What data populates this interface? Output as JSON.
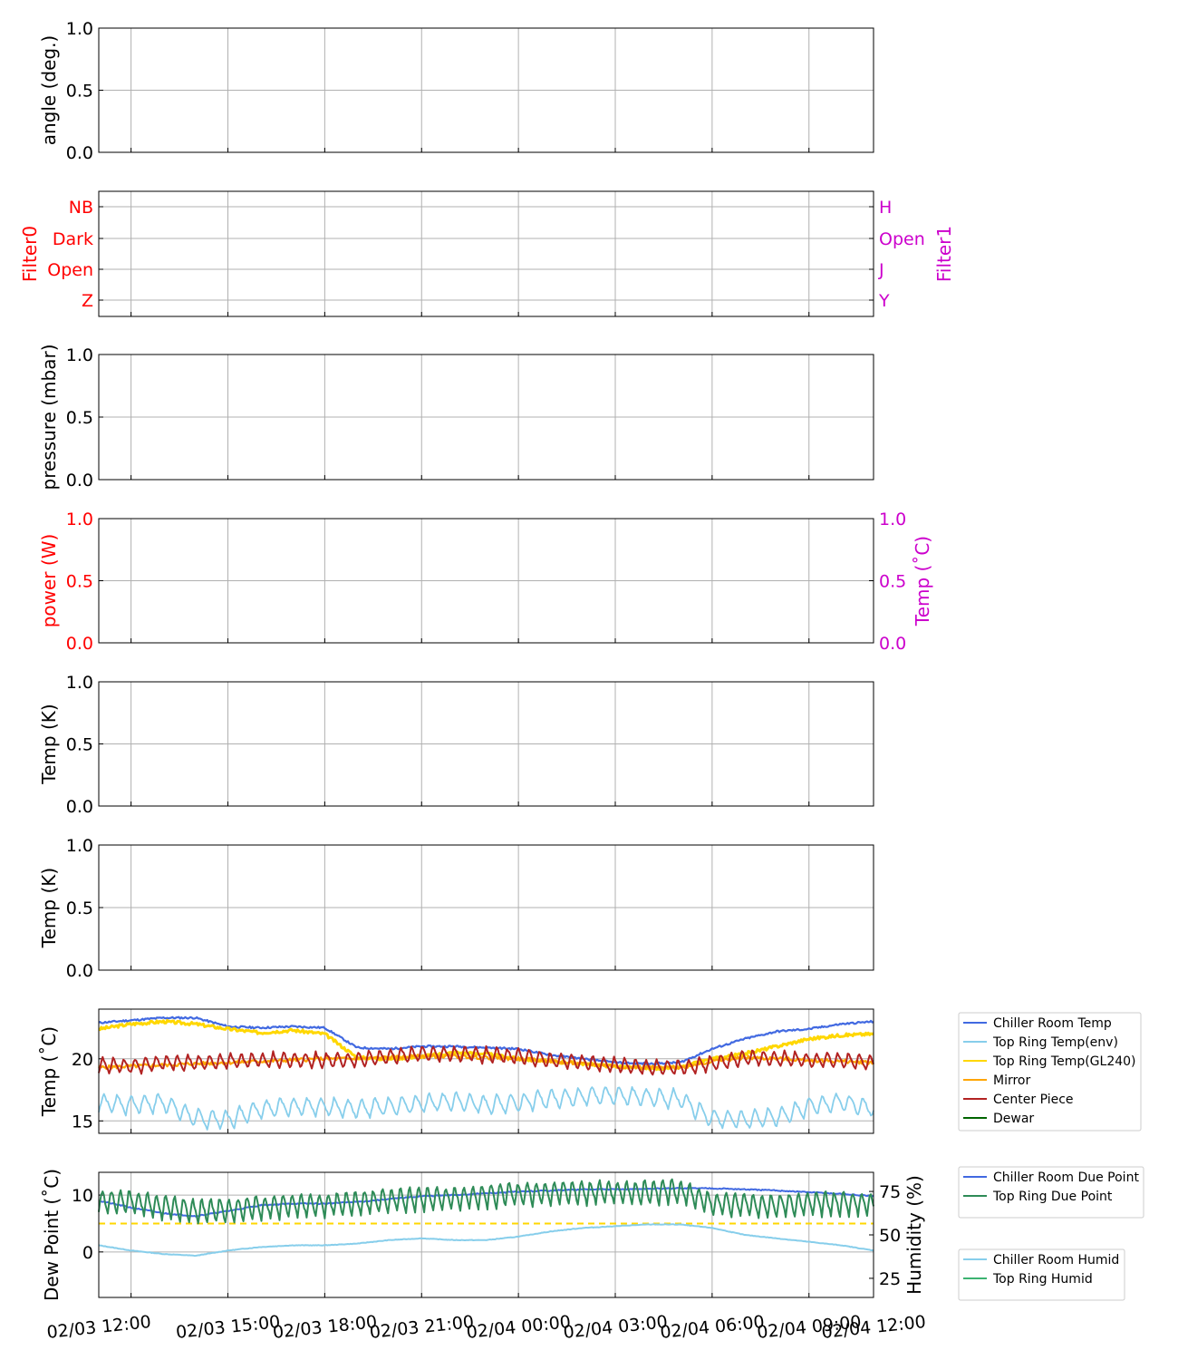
{
  "colors": {
    "chiller_room_temp": "#4169e1",
    "top_ring_temp_env": "#87ceeb",
    "top_ring_temp_gl240": "#ffd700",
    "mirror": "#ffa500",
    "center_piece": "#b22222",
    "dewar": "#006400",
    "chiller_room_due_point": "#4169e1",
    "top_ring_due_point": "#2e8b57",
    "chiller_room_humid": "#87ceeb",
    "top_ring_humid": "#3cb371",
    "threshold": "#ffd700",
    "filter0": "#ff0000",
    "filter1": "#cc00cc"
  },
  "chart_data": [
    {
      "id": "angle",
      "type": "line",
      "ylabel": "angle (deg.)",
      "ylim": [
        0,
        1
      ],
      "yticks": [
        "0.0",
        "0.5",
        "1.0"
      ],
      "grid": true,
      "series": []
    },
    {
      "id": "filter",
      "type": "line",
      "ylabel_left": "Filter0",
      "ylabel_right": "Filter1",
      "yticks_left": [
        "Z",
        "Open",
        "Dark",
        "NB"
      ],
      "yticks_right": [
        "Y",
        "J",
        "Open",
        "H"
      ],
      "grid": true,
      "series": []
    },
    {
      "id": "pressure",
      "type": "line",
      "ylabel": "pressure (mbar)",
      "ylim": [
        0,
        1
      ],
      "yticks": [
        "0.0",
        "0.5",
        "1.0"
      ],
      "grid": true,
      "series": []
    },
    {
      "id": "power",
      "type": "line",
      "ylabel_left": "power (W)",
      "ylabel_right": "Temp (˚C)",
      "ylim": [
        0,
        1
      ],
      "yticks_left": [
        "0.0",
        "0.5",
        "1.0"
      ],
      "yticks_right": [
        "0.0",
        "0.5",
        "1.0"
      ],
      "grid": true,
      "series": []
    },
    {
      "id": "tempK1",
      "type": "line",
      "ylabel": "Temp (K)",
      "ylim": [
        0,
        1
      ],
      "yticks": [
        "0.0",
        "0.5",
        "1.0"
      ],
      "grid": true,
      "series": []
    },
    {
      "id": "tempK2",
      "type": "line",
      "ylabel": "Temp (K)",
      "ylim": [
        0,
        1
      ],
      "yticks": [
        "0.0",
        "0.5",
        "1.0"
      ],
      "grid": true,
      "series": []
    },
    {
      "id": "env",
      "type": "line",
      "ylabel": "Temp (˚C)",
      "ylim": [
        14,
        24
      ],
      "yticks": [
        15,
        20
      ],
      "grid": true,
      "x_unit": "hours since 02/03 11:00",
      "legend_position": "right",
      "legend": [
        "Chiller Room Temp",
        "Top Ring Temp(env)",
        "Top Ring Temp(GL240)",
        "Mirror",
        "Center Piece",
        "Dewar"
      ],
      "series": [
        {
          "name": "Chiller Room Temp",
          "x": [
            0,
            1,
            2,
            3,
            4,
            5,
            6,
            7,
            8,
            9,
            10,
            11,
            12,
            13,
            14,
            15,
            16,
            17,
            18,
            19,
            20,
            21,
            22,
            23,
            24
          ],
          "y": [
            22.9,
            23.1,
            23.3,
            23.3,
            22.6,
            22.5,
            22.6,
            22.5,
            20.9,
            20.8,
            21.0,
            21.0,
            20.9,
            20.8,
            20.3,
            20.0,
            19.7,
            19.6,
            19.7,
            20.8,
            21.6,
            22.2,
            22.4,
            22.8,
            23.0
          ]
        },
        {
          "name": "Top Ring Temp(env)",
          "x": [
            0,
            1,
            2,
            3,
            4,
            5,
            6,
            7,
            8,
            9,
            10,
            11,
            12,
            13,
            14,
            15,
            16,
            17,
            18,
            19,
            20,
            21,
            22,
            23,
            24
          ],
          "y": [
            16.5,
            16.3,
            16.5,
            15.2,
            15.1,
            16.0,
            16.2,
            16.1,
            16.0,
            16.2,
            16.4,
            16.6,
            16.3,
            16.5,
            16.8,
            17.0,
            17.1,
            16.9,
            16.8,
            15.2,
            15.1,
            15.3,
            16.2,
            16.5,
            16.0
          ]
        },
        {
          "name": "Top Ring Temp(GL240)",
          "x": [
            0,
            1,
            2,
            3,
            4,
            5,
            6,
            7,
            8,
            9,
            10,
            11,
            12,
            13,
            14,
            15,
            16,
            17,
            18,
            19,
            20,
            21,
            22,
            23,
            24
          ],
          "y": [
            22.4,
            22.8,
            23.0,
            22.8,
            22.4,
            22.1,
            22.3,
            22.0,
            20.1,
            20.0,
            20.2,
            20.5,
            20.4,
            20.0,
            19.8,
            19.6,
            19.4,
            19.2,
            19.3,
            20.0,
            20.4,
            21.0,
            21.6,
            21.9,
            22.0
          ]
        },
        {
          "name": "Mirror",
          "x": [
            0,
            1,
            2,
            3,
            4,
            5,
            6,
            7,
            8,
            9,
            10,
            11,
            12,
            13,
            14,
            15,
            16,
            17,
            18,
            19,
            20,
            21,
            22,
            23,
            24
          ],
          "y": [
            19.3,
            19.4,
            19.5,
            19.6,
            19.7,
            19.8,
            19.9,
            20.0,
            20.0,
            20.1,
            20.2,
            20.2,
            20.1,
            20.0,
            19.8,
            19.6,
            19.4,
            19.3,
            19.3,
            19.8,
            20.1,
            20.0,
            19.9,
            19.8,
            19.7
          ]
        },
        {
          "name": "Center Piece",
          "x": [
            0,
            1,
            2,
            3,
            4,
            5,
            6,
            7,
            8,
            9,
            10,
            11,
            12,
            13,
            14,
            15,
            16,
            17,
            18,
            19,
            20,
            21,
            22,
            23,
            24
          ],
          "y": [
            19.5,
            19.4,
            19.7,
            19.7,
            19.8,
            19.9,
            19.9,
            19.9,
            19.9,
            20.2,
            20.4,
            20.4,
            20.3,
            20.2,
            19.9,
            19.7,
            19.5,
            19.3,
            19.3,
            19.6,
            20.1,
            20.0,
            19.9,
            19.9,
            19.7
          ]
        },
        {
          "name": "Dewar",
          "x": [],
          "y": []
        }
      ]
    },
    {
      "id": "dew",
      "type": "line",
      "ylabel_left": "Dew Point (˚C)",
      "ylabel_right": "Humidity (%)",
      "ylim_left": [
        -8,
        14
      ],
      "ylim_right": [
        14,
        86
      ],
      "yticks_left": [
        0,
        10
      ],
      "yticks_right": [
        25,
        50,
        75
      ],
      "grid": true,
      "x_unit": "hours since 02/03 11:00",
      "threshold_dew_point": 5,
      "legend_top": [
        "Chiller Room Due Point",
        "Top Ring Due Point"
      ],
      "legend_bottom": [
        "Chiller Room Humid",
        "Top Ring Humid"
      ],
      "series": [
        {
          "name": "Chiller Room Due Point",
          "axis": "left",
          "x": [
            0,
            1,
            2,
            3,
            4,
            5,
            6,
            7,
            8,
            9,
            10,
            11,
            12,
            13,
            14,
            15,
            16,
            17,
            18,
            19,
            20,
            21,
            22,
            23,
            24
          ],
          "y": [
            9.0,
            7.8,
            6.8,
            6.3,
            7.2,
            8.2,
            8.5,
            8.5,
            8.8,
            9.3,
            9.8,
            10.0,
            10.3,
            10.6,
            10.8,
            11.0,
            11.0,
            11.1,
            11.2,
            11.2,
            11.0,
            10.8,
            10.5,
            10.2,
            9.8
          ]
        },
        {
          "name": "Top Ring Due Point",
          "axis": "left",
          "x": [
            0,
            1,
            2,
            3,
            4,
            5,
            6,
            7,
            8,
            9,
            10,
            11,
            12,
            13,
            14,
            15,
            16,
            17,
            18,
            19,
            20,
            21,
            22,
            23,
            24
          ],
          "y": [
            9.0,
            9.0,
            8.0,
            7.3,
            7.5,
            8.0,
            8.2,
            8.4,
            8.8,
            9.2,
            9.5,
            9.6,
            10.0,
            10.3,
            10.6,
            10.6,
            10.6,
            10.6,
            10.8,
            8.6,
            8.4,
            8.4,
            8.6,
            8.7,
            8.6
          ]
        },
        {
          "name": "Chiller Room Humid",
          "axis": "right",
          "x": [
            0,
            1,
            2,
            3,
            4,
            5,
            6,
            7,
            8,
            9,
            10,
            11,
            12,
            13,
            14,
            15,
            16,
            17,
            18,
            19,
            20,
            21,
            22,
            23,
            24
          ],
          "y": [
            44,
            41,
            39,
            38,
            41,
            43,
            44,
            44,
            45,
            47,
            48,
            47,
            47,
            49,
            52,
            54,
            55,
            56,
            56,
            54,
            50,
            48,
            46,
            44,
            41
          ]
        },
        {
          "name": "Top Ring Humid",
          "axis": "right",
          "x": [],
          "y": []
        }
      ]
    }
  ],
  "x_axis": {
    "range_hours": [
      0,
      24
    ],
    "start": "02/03 11:00",
    "ticks": [
      "02/03 12:00",
      "02/03 15:00",
      "02/03 18:00",
      "02/03 21:00",
      "02/04 00:00",
      "02/04 03:00",
      "02/04 06:00",
      "02/04 09:00",
      "02/04 12:00"
    ],
    "tick_hours": [
      1,
      4,
      7,
      10,
      13,
      16,
      19,
      22,
      25
    ]
  }
}
